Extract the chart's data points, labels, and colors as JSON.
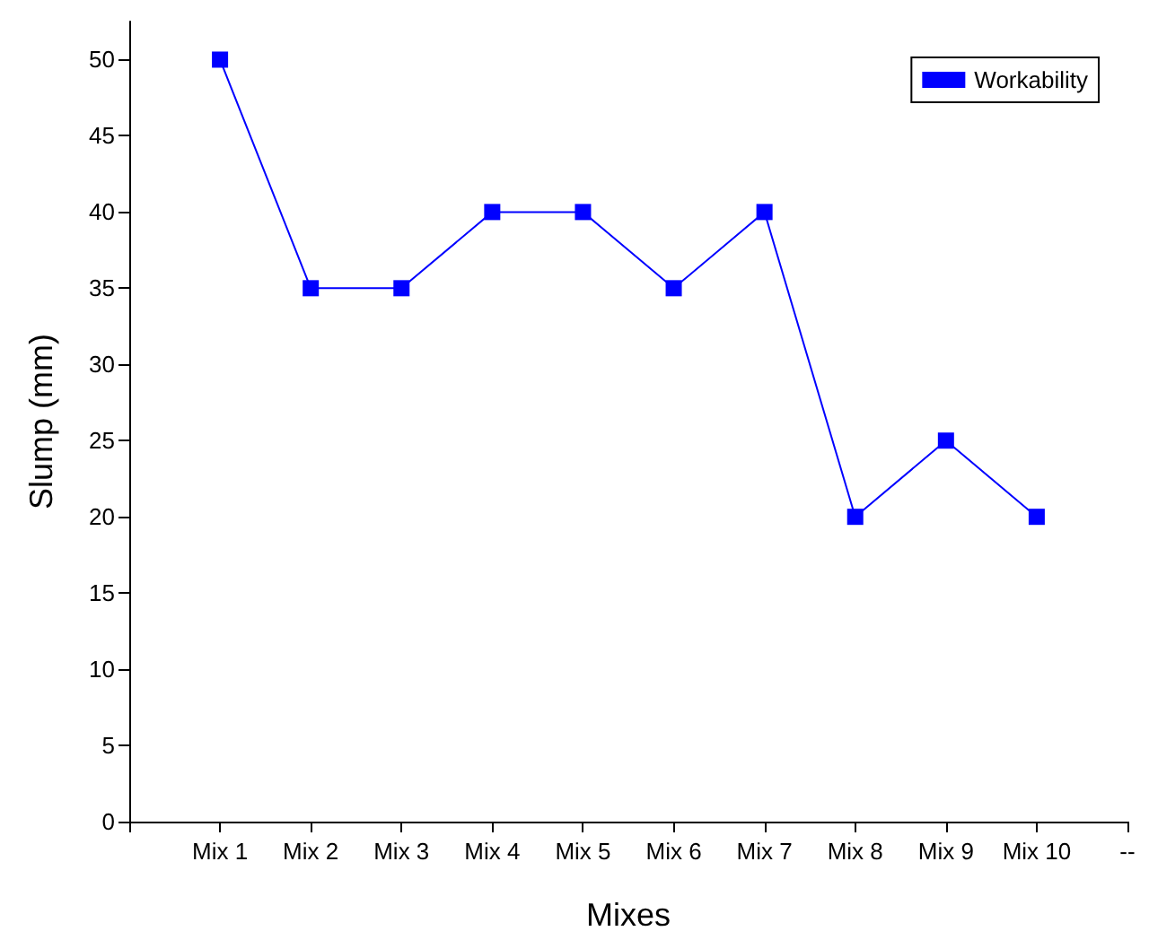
{
  "chart_data": {
    "type": "line",
    "xlabel": "Mixes",
    "ylabel": "Slump (mm)",
    "categories": [
      null,
      "Mix 1",
      "Mix 2",
      "Mix 3",
      "Mix 4",
      "Mix 5",
      "Mix 6",
      "Mix 7",
      "Mix 8",
      "Mix 9",
      "Mix 10",
      "--"
    ],
    "series": [
      {
        "name": "Workability",
        "color": "#0000ff",
        "values": [
          null,
          50,
          35,
          35,
          40,
          40,
          35,
          40,
          20,
          25,
          20,
          null
        ]
      }
    ],
    "ylim": [
      0,
      52.5
    ],
    "yticks": [
      0,
      5,
      10,
      15,
      20,
      25,
      30,
      35,
      40,
      45,
      50
    ],
    "grid": false,
    "legend": "top right",
    "marker": "square",
    "line_style": "solid"
  }
}
